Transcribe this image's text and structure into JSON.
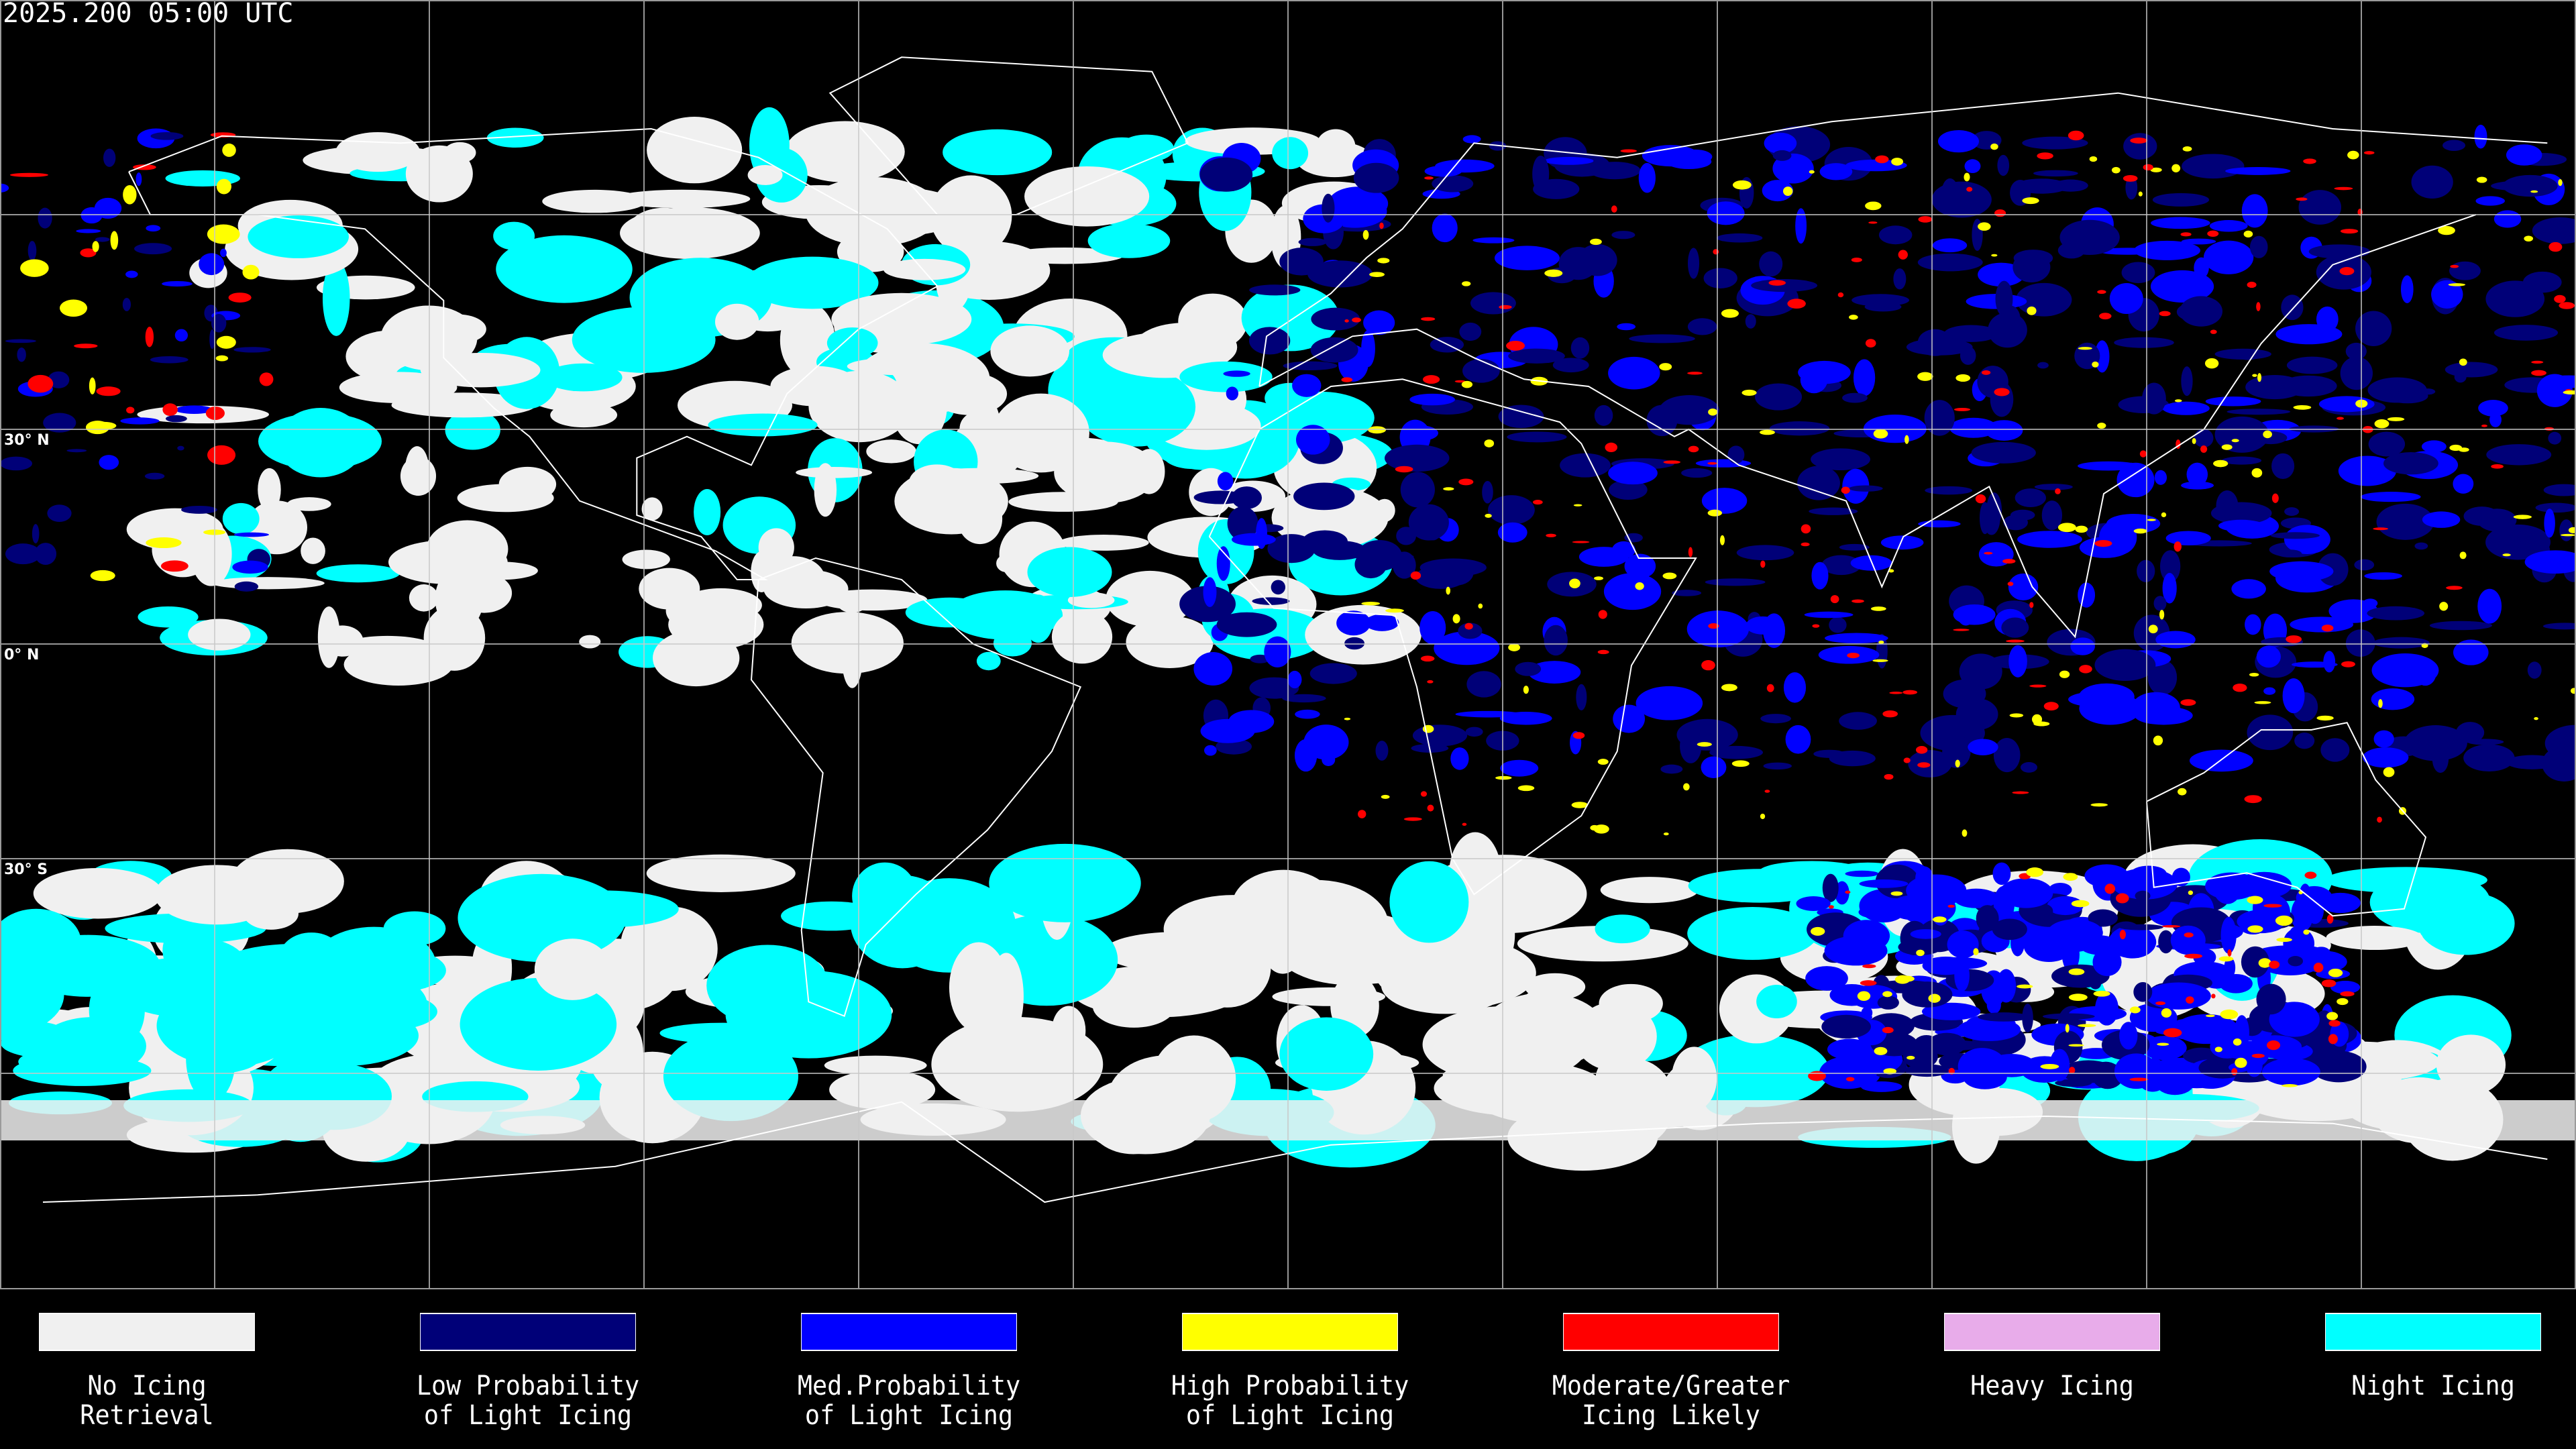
{
  "header": {
    "timestamp": "2025.200 05:00 UTC"
  },
  "latitude_labels": [
    "30° N",
    "0° N",
    "30° S"
  ],
  "legend": [
    {
      "label": "No Icing\nRetrieval",
      "color": "#f0f0f0"
    },
    {
      "label": "Low Probability\nof Light Icing",
      "color": "#000078"
    },
    {
      "label": "Med.Probability\nof Light Icing",
      "color": "#0000ff"
    },
    {
      "label": "High Probability\nof Light Icing",
      "color": "#ffff00"
    },
    {
      "label": "Moderate/Greater\nIcing Likely",
      "color": "#ff0000"
    },
    {
      "label": "Heavy Icing",
      "color": "#e8acea"
    },
    {
      "label": "Night Icing",
      "color": "#00ffff"
    }
  ],
  "colors": {
    "background": "#000000",
    "grid": "#c8c8c8",
    "coastline": "#ffffff"
  }
}
